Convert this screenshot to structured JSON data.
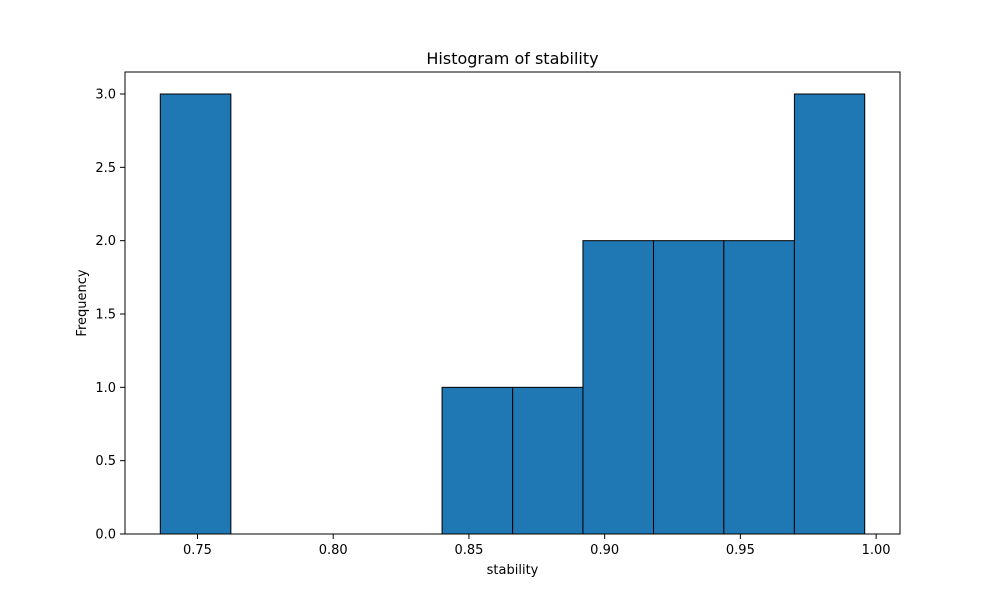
{
  "chart_data": {
    "type": "bar",
    "title": "Histogram of stability",
    "xlabel": "stability",
    "ylabel": "Frequency",
    "bins": [
      {
        "start": 0.7363,
        "end": 0.7623,
        "count": 3
      },
      {
        "start": 0.7623,
        "end": 0.7882,
        "count": 0
      },
      {
        "start": 0.7882,
        "end": 0.8142,
        "count": 0
      },
      {
        "start": 0.8142,
        "end": 0.8401,
        "count": 0
      },
      {
        "start": 0.8401,
        "end": 0.8661,
        "count": 1
      },
      {
        "start": 0.8661,
        "end": 0.892,
        "count": 1
      },
      {
        "start": 0.892,
        "end": 0.918,
        "count": 2
      },
      {
        "start": 0.918,
        "end": 0.9439,
        "count": 2
      },
      {
        "start": 0.9439,
        "end": 0.9699,
        "count": 2
      },
      {
        "start": 0.9699,
        "end": 0.9958,
        "count": 3
      }
    ],
    "xlim": [
      0.7233,
      1.0088
    ],
    "ylim": [
      0,
      3.15
    ],
    "xticks": [
      0.75,
      0.8,
      0.85,
      0.9,
      0.95,
      1.0
    ],
    "xtick_labels": [
      "0.75",
      "0.80",
      "0.85",
      "0.90",
      "0.95",
      "1.00"
    ],
    "yticks": [
      0.0,
      0.5,
      1.0,
      1.5,
      2.0,
      2.5,
      3.0
    ],
    "ytick_labels": [
      "0.0",
      "0.5",
      "1.0",
      "1.5",
      "2.0",
      "2.5",
      "3.0"
    ],
    "grid": false,
    "colors": {
      "bar_fill": "#1f77b4",
      "bar_edge": "#000000"
    }
  }
}
